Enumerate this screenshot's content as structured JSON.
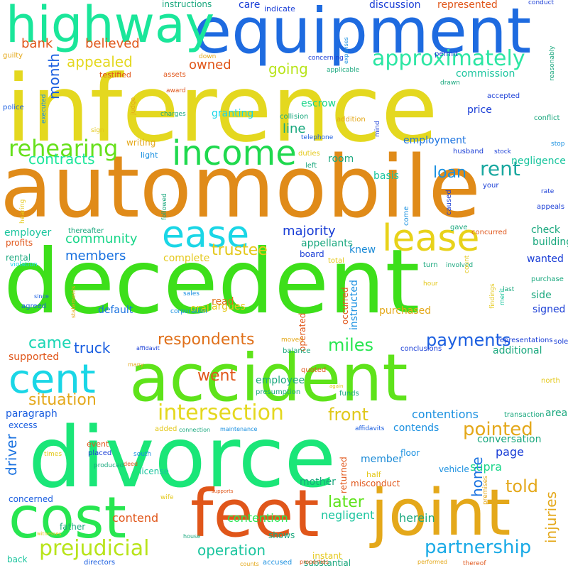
{
  "words": [
    {
      "text": "inference",
      "color": "#e4d81f",
      "vertical": false
    },
    {
      "text": "automobile",
      "color": "#e08b19",
      "vertical": false
    },
    {
      "text": "decedent",
      "color": "#3ddf1a",
      "vertical": false
    },
    {
      "text": "divorce",
      "color": "#1ae678",
      "vertical": false
    },
    {
      "text": "accident",
      "color": "#5ee31a",
      "vertical": false
    },
    {
      "text": "equipment",
      "color": "#1e6be0",
      "vertical": false
    },
    {
      "text": "highway",
      "color": "#1ae69a",
      "vertical": false
    },
    {
      "text": "joint",
      "color": "#e4a81a",
      "vertical": false
    },
    {
      "text": "feet",
      "color": "#e0561a",
      "vertical": false
    },
    {
      "text": "cost",
      "color": "#27e650",
      "vertical": false
    },
    {
      "text": "cent",
      "color": "#1ad6e6",
      "vertical": false
    },
    {
      "text": "ease",
      "color": "#1ad6e6",
      "vertical": false
    },
    {
      "text": "lease",
      "color": "#e8d21a",
      "vertical": false
    },
    {
      "text": "income",
      "color": "#1fd94e",
      "vertical": false
    },
    {
      "text": "rehearing",
      "color": "#66e01a",
      "vertical": false
    },
    {
      "text": "approximately",
      "color": "#2ce6a3",
      "vertical": false
    },
    {
      "text": "intersection",
      "color": "#e4d81f",
      "vertical": false
    },
    {
      "text": "prejudicial",
      "color": "#b8e41a",
      "vertical": false
    },
    {
      "text": "partnership",
      "color": "#1aaae6",
      "vertical": false
    },
    {
      "text": "pointed",
      "color": "#e4a81a",
      "vertical": false
    },
    {
      "text": "payments",
      "color": "#1a5ee0",
      "vertical": false
    },
    {
      "text": "rent",
      "color": "#1aa8a0",
      "vertical": false
    },
    {
      "text": "month",
      "color": "#1a5fe0",
      "vertical": true
    },
    {
      "text": "driver",
      "color": "#1a72e0",
      "vertical": true
    },
    {
      "text": "home",
      "color": "#1a72e0",
      "vertical": true
    },
    {
      "text": "injuries",
      "color": "#e4a81a",
      "vertical": true
    },
    {
      "text": "contracts",
      "color": "#1ae69a",
      "vertical": false
    },
    {
      "text": "respondents",
      "color": "#e0701a",
      "vertical": false
    },
    {
      "text": "operation",
      "color": "#1ac59e",
      "vertical": false
    },
    {
      "text": "situation",
      "color": "#e4a81a",
      "vertical": false
    },
    {
      "text": "trustee",
      "color": "#e4c81a",
      "vertical": false
    },
    {
      "text": "miles",
      "color": "#27e650",
      "vertical": false
    },
    {
      "text": "front",
      "color": "#e0c81a",
      "vertical": false
    },
    {
      "text": "told",
      "color": "#e4a81a",
      "vertical": false
    },
    {
      "text": "majority",
      "color": "#1a3ed6",
      "vertical": false
    },
    {
      "text": "truck",
      "color": "#1a5ee0",
      "vertical": false
    },
    {
      "text": "came",
      "color": "#1ad6b4",
      "vertical": false
    },
    {
      "text": "loan",
      "color": "#1a90e0",
      "vertical": false
    },
    {
      "text": "going",
      "color": "#b8e41a",
      "vertical": false
    },
    {
      "text": "owned",
      "color": "#e0561a",
      "vertical": false
    },
    {
      "text": "appealed",
      "color": "#e4d81f",
      "vertical": false
    },
    {
      "text": "believed",
      "color": "#e0561a",
      "vertical": false
    },
    {
      "text": "bank",
      "color": "#e0561a",
      "vertical": false
    },
    {
      "text": "community",
      "color": "#1ad68a",
      "vertical": false
    },
    {
      "text": "members",
      "color": "#1a72e0",
      "vertical": false
    },
    {
      "text": "later",
      "color": "#5ee31a",
      "vertical": false
    },
    {
      "text": "went",
      "color": "#e0561a",
      "vertical": false
    },
    {
      "text": "line",
      "color": "#1aa87e",
      "vertical": false
    },
    {
      "text": "contentions",
      "color": "#1a90e0",
      "vertical": false
    },
    {
      "text": "page",
      "color": "#1a3ed6",
      "vertical": false
    },
    {
      "text": "member",
      "color": "#1a8ad6",
      "vertical": false
    },
    {
      "text": "mother",
      "color": "#1aa87e",
      "vertical": false
    },
    {
      "text": "contend",
      "color": "#e0561a",
      "vertical": false
    },
    {
      "text": "contention",
      "color": "#27e650",
      "vertical": false
    },
    {
      "text": "negligent",
      "color": "#1ac59e",
      "vertical": false
    },
    {
      "text": "herein",
      "color": "#1aa87e",
      "vertical": false
    },
    {
      "text": "supra",
      "color": "#1ad68a",
      "vertical": false
    },
    {
      "text": "contends",
      "color": "#1a90e0",
      "vertical": false
    },
    {
      "text": "employer",
      "color": "#1ac59e",
      "vertical": false
    },
    {
      "text": "employment",
      "color": "#1a72e0",
      "vertical": false
    },
    {
      "text": "employee",
      "color": "#1aa87e",
      "vertical": false
    },
    {
      "text": "price",
      "color": "#1a3ed6",
      "vertical": false
    },
    {
      "text": "escrow",
      "color": "#1ad68a",
      "vertical": false
    },
    {
      "text": "basis",
      "color": "#1ac59e",
      "vertical": false
    },
    {
      "text": "room",
      "color": "#1aa87e",
      "vertical": false
    },
    {
      "text": "granting",
      "color": "#1ad6e6",
      "vertical": false
    },
    {
      "text": "commission",
      "color": "#1ac59e",
      "vertical": false
    },
    {
      "text": "conversation",
      "color": "#1aa87e",
      "vertical": false
    },
    {
      "text": "instructed",
      "color": "#1a90e0",
      "vertical": true
    },
    {
      "text": "knew",
      "color": "#1a8ad6",
      "vertical": false
    },
    {
      "text": "appellants",
      "color": "#1aa87e",
      "vertical": false
    },
    {
      "text": "check",
      "color": "#1aa87e",
      "vertical": false
    },
    {
      "text": "building",
      "color": "#1aa87e",
      "vertical": false
    },
    {
      "text": "negligence",
      "color": "#1ac59e",
      "vertical": false
    },
    {
      "text": "additional",
      "color": "#1aa87e",
      "vertical": false
    },
    {
      "text": "purchased",
      "color": "#e4a81a",
      "vertical": false
    },
    {
      "text": "default",
      "color": "#1a72e0",
      "vertical": false
    },
    {
      "text": "complete",
      "color": "#e4c81a",
      "vertical": false
    },
    {
      "text": "argues",
      "color": "#e4c81a",
      "vertical": false
    },
    {
      "text": "read",
      "color": "#e0701a",
      "vertical": false
    },
    {
      "text": "oral",
      "color": "#e4c81a",
      "vertical": false
    },
    {
      "text": "signed",
      "color": "#1a3ed6",
      "vertical": false
    },
    {
      "text": "side",
      "color": "#1aa87e",
      "vertical": false
    },
    {
      "text": "wanted",
      "color": "#1a3ed6",
      "vertical": false
    },
    {
      "text": "paragraph",
      "color": "#1a5ee0",
      "vertical": false
    },
    {
      "text": "supported",
      "color": "#e0561a",
      "vertical": false
    },
    {
      "text": "profits",
      "color": "#e0561a",
      "vertical": false
    },
    {
      "text": "rental",
      "color": "#1aa87e",
      "vertical": false
    },
    {
      "text": "vehicle",
      "color": "#1a90e0",
      "vertical": false
    },
    {
      "text": "floor",
      "color": "#1a90e0",
      "vertical": false
    },
    {
      "text": "father",
      "color": "#1aa87e",
      "vertical": false
    },
    {
      "text": "shows",
      "color": "#1aa87e",
      "vertical": false
    },
    {
      "text": "license",
      "color": "#1ac59e",
      "vertical": false
    },
    {
      "text": "substantial",
      "color": "#1aa87e",
      "vertical": false
    },
    {
      "text": "instant",
      "color": "#e4c81a",
      "vertical": false
    },
    {
      "text": "area",
      "color": "#1aa87e",
      "vertical": false
    },
    {
      "text": "board",
      "color": "#1a3ed6",
      "vertical": false
    },
    {
      "text": "occurred",
      "color": "#e0561a",
      "vertical": true
    },
    {
      "text": "operated",
      "color": "#e0561a",
      "vertical": true
    },
    {
      "text": "returned",
      "color": "#e0561a",
      "vertical": true
    },
    {
      "text": "misconduct",
      "color": "#e0561a",
      "vertical": false
    },
    {
      "text": "concerned",
      "color": "#1a5ee0",
      "vertical": false
    },
    {
      "text": "excess",
      "color": "#1a5ee0",
      "vertical": false
    },
    {
      "text": "back",
      "color": "#1ac59e",
      "vertical": false
    },
    {
      "text": "directors",
      "color": "#1a5ee0",
      "vertical": false
    },
    {
      "text": "accused",
      "color": "#1a90e0",
      "vertical": false
    },
    {
      "text": "counts",
      "color": "#e4a81a",
      "vertical": false
    },
    {
      "text": "properties",
      "color": "#e0561a",
      "vertical": false
    },
    {
      "text": "performed",
      "color": "#e4a81a",
      "vertical": false
    },
    {
      "text": "thereof",
      "color": "#e0561a",
      "vertical": false
    },
    {
      "text": "presumption",
      "color": "#1aa87e",
      "vertical": false
    },
    {
      "text": "quoted",
      "color": "#e0561a",
      "vertical": false
    },
    {
      "text": "funds",
      "color": "#1aa87e",
      "vertical": false
    },
    {
      "text": "north",
      "color": "#e4c81a",
      "vertical": false
    },
    {
      "text": "transaction",
      "color": "#1aa87e",
      "vertical": false
    },
    {
      "text": "purchase",
      "color": "#1aa87e",
      "vertical": false
    },
    {
      "text": "conclusions",
      "color": "#1a3ed6",
      "vertical": false
    },
    {
      "text": "sole",
      "color": "#1a3ed6",
      "vertical": false
    },
    {
      "text": "representations",
      "color": "#1a3ed6",
      "vertical": false
    },
    {
      "text": "findings",
      "color": "#e4c81a",
      "vertical": true
    },
    {
      "text": "merit",
      "color": "#1ac59e",
      "vertical": true
    },
    {
      "text": "last",
      "color": "#1aa87e",
      "vertical": false
    },
    {
      "text": "involved",
      "color": "#1aa87e",
      "vertical": false
    },
    {
      "text": "count",
      "color": "#e4c81a",
      "vertical": true
    },
    {
      "text": "turn",
      "color": "#1aa87e",
      "vertical": false
    },
    {
      "text": "hour",
      "color": "#e4c81a",
      "vertical": false
    },
    {
      "text": "total",
      "color": "#e4c81a",
      "vertical": false
    },
    {
      "text": "rate",
      "color": "#1a3ed6",
      "vertical": false
    },
    {
      "text": "concurred",
      "color": "#e0561a",
      "vertical": false
    },
    {
      "text": "gave",
      "color": "#1aa87e",
      "vertical": false
    },
    {
      "text": "caused",
      "color": "#1a3ed6",
      "vertical": true
    },
    {
      "text": "come",
      "color": "#1a90e0",
      "vertical": true
    },
    {
      "text": "your",
      "color": "#1a3ed6",
      "vertical": false
    },
    {
      "text": "appeals",
      "color": "#1a3ed6",
      "vertical": false
    },
    {
      "text": "husband",
      "color": "#1a3ed6",
      "vertical": false
    },
    {
      "text": "stock",
      "color": "#1a3ed6",
      "vertical": false
    },
    {
      "text": "stop",
      "color": "#1a90e0",
      "vertical": false
    },
    {
      "text": "conflict",
      "color": "#1aa87e",
      "vertical": false
    },
    {
      "text": "accepted",
      "color": "#1a3ed6",
      "vertical": false
    },
    {
      "text": "drawn",
      "color": "#1aa87e",
      "vertical": false
    },
    {
      "text": "permit",
      "color": "#1a3ed6",
      "vertical": false
    },
    {
      "text": "concerning",
      "color": "#1a3ed6",
      "vertical": false
    },
    {
      "text": "expenses",
      "color": "#1a90e0",
      "vertical": true
    },
    {
      "text": "applicable",
      "color": "#1aa87e",
      "vertical": false
    },
    {
      "text": "represented",
      "color": "#e0561a",
      "vertical": false
    },
    {
      "text": "discussion",
      "color": "#1a3ed6",
      "vertical": false
    },
    {
      "text": "indicate",
      "color": "#1a3ed6",
      "vertical": false
    },
    {
      "text": "care",
      "color": "#1a3ed6",
      "vertical": false
    },
    {
      "text": "instructions",
      "color": "#1aa87e",
      "vertical": false
    },
    {
      "text": "conduct",
      "color": "#1a3ed6",
      "vertical": false
    },
    {
      "text": "reasonably",
      "color": "#1aa87e",
      "vertical": true
    },
    {
      "text": "guilty",
      "color": "#e4a81a",
      "vertical": false
    },
    {
      "text": "down",
      "color": "#e4a81a",
      "vertical": false
    },
    {
      "text": "testified",
      "color": "#e0561a",
      "vertical": false
    },
    {
      "text": "assets",
      "color": "#e0561a",
      "vertical": false
    },
    {
      "text": "award",
      "color": "#e0561a",
      "vertical": false
    },
    {
      "text": "police",
      "color": "#1a5ee0",
      "vertical": false
    },
    {
      "text": "executed",
      "color": "#1a90e0",
      "vertical": true
    },
    {
      "text": "judge",
      "color": "#e4a81a",
      "vertical": true
    },
    {
      "text": "charges",
      "color": "#1aa87e",
      "vertical": false
    },
    {
      "text": "collision",
      "color": "#1aa87e",
      "vertical": false
    },
    {
      "text": "addition",
      "color": "#e4a81a",
      "vertical": false
    },
    {
      "text": "mind",
      "color": "#1a3ed6",
      "vertical": true
    },
    {
      "text": "sign",
      "color": "#e4c81a",
      "vertical": false
    },
    {
      "text": "writing",
      "color": "#e4a81a",
      "vertical": false
    },
    {
      "text": "light",
      "color": "#1a90e0",
      "vertical": false
    },
    {
      "text": "telephone",
      "color": "#1a5ee0",
      "vertical": false
    },
    {
      "text": "duties",
      "color": "#e4c81a",
      "vertical": false
    },
    {
      "text": "left",
      "color": "#1aa87e",
      "vertical": false
    },
    {
      "text": "hearing",
      "color": "#e4c81a",
      "vertical": true
    },
    {
      "text": "followed",
      "color": "#1aa87e",
      "vertical": true
    },
    {
      "text": "thereafter",
      "color": "#1aa87e",
      "vertical": false
    },
    {
      "text": "violation",
      "color": "#1ad6e6",
      "vertical": false
    },
    {
      "text": "since",
      "color": "#1a5ee0",
      "vertical": false
    },
    {
      "text": "agreed",
      "color": "#1a5ee0",
      "vertical": false
    },
    {
      "text": "statements",
      "color": "#e4a81a",
      "vertical": true
    },
    {
      "text": "sales",
      "color": "#1a90e0",
      "vertical": false
    },
    {
      "text": "corporation",
      "color": "#1a90e0",
      "vertical": false
    },
    {
      "text": "affidavit",
      "color": "#1a3ed6",
      "vertical": false
    },
    {
      "text": "moved",
      "color": "#e4a81a",
      "vertical": false
    },
    {
      "text": "balance",
      "color": "#1aa87e",
      "vertical": false
    },
    {
      "text": "many",
      "color": "#e4a81a",
      "vertical": false
    },
    {
      "text": "again",
      "color": "#e4c81a",
      "vertical": false
    },
    {
      "text": "added",
      "color": "#e4c81a",
      "vertical": false
    },
    {
      "text": "connection",
      "color": "#1aa87e",
      "vertical": false
    },
    {
      "text": "maintenance",
      "color": "#1a90e0",
      "vertical": false
    },
    {
      "text": "affidavits",
      "color": "#1a5ee0",
      "vertical": false
    },
    {
      "text": "times",
      "color": "#e4c81a",
      "vertical": false
    },
    {
      "text": "event",
      "color": "#e0561a",
      "vertical": false
    },
    {
      "text": "placed",
      "color": "#1a3ed6",
      "vertical": false
    },
    {
      "text": "south",
      "color": "#1a90e0",
      "vertical": false
    },
    {
      "text": "deed",
      "color": "#e0561a",
      "vertical": false
    },
    {
      "text": "produced",
      "color": "#1aa87e",
      "vertical": false
    },
    {
      "text": "half",
      "color": "#e4c81a",
      "vertical": false
    },
    {
      "text": "wife",
      "color": "#e4c81a",
      "vertical": false
    },
    {
      "text": "supports",
      "color": "#e0561a",
      "vertical": false
    },
    {
      "text": "premises",
      "color": "#e4a81a",
      "vertical": true
    },
    {
      "text": "witnesses",
      "color": "#e4c81a",
      "vertical": false
    },
    {
      "text": "house",
      "color": "#1aa87e",
      "vertical": false
    },
    {
      "text": "awarded",
      "color": "#e4c81a",
      "vertical": false
    }
  ]
}
